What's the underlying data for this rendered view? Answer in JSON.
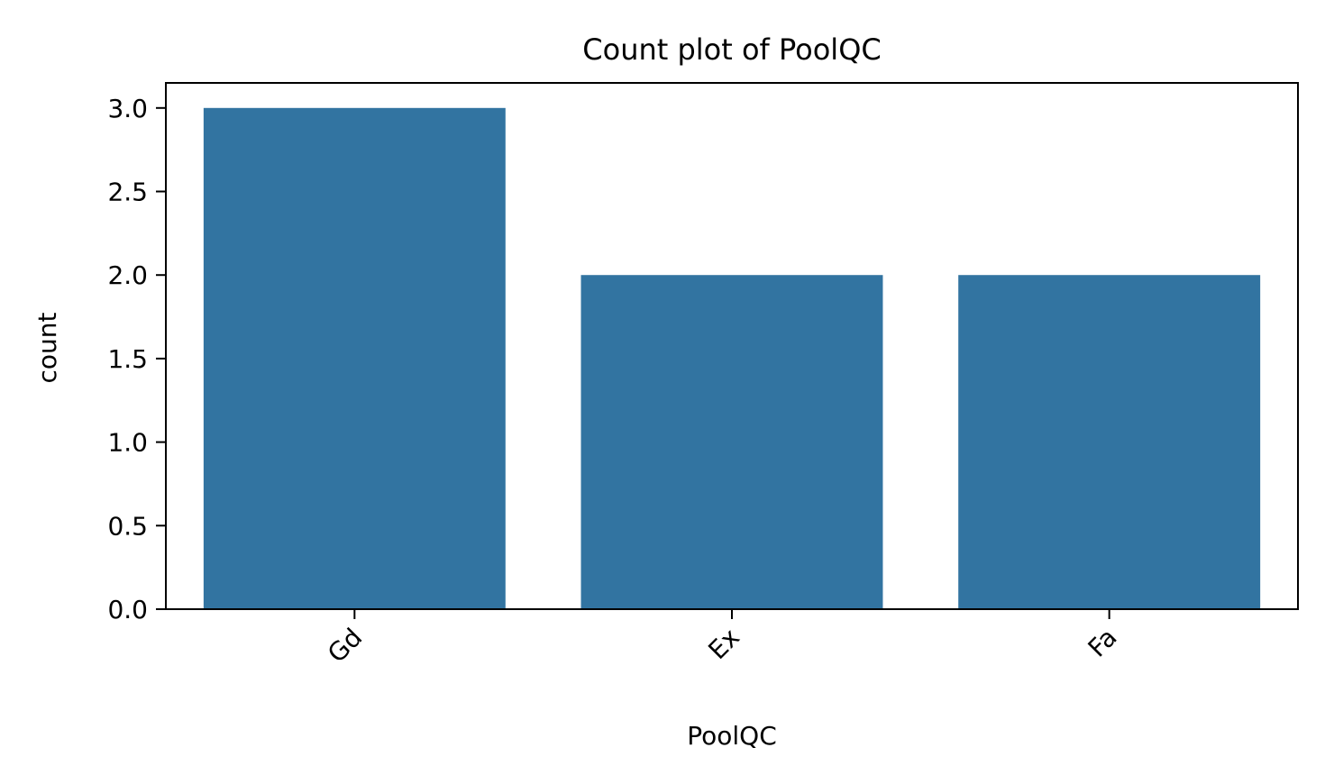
{
  "chart_data": {
    "type": "bar",
    "title": "Count plot of PoolQC",
    "xlabel": "PoolQC",
    "ylabel": "count",
    "categories": [
      "Gd",
      "Ex",
      "Fa"
    ],
    "values": [
      3,
      2,
      2
    ],
    "ylim": [
      0,
      3.15
    ],
    "yticks": [
      "0.0",
      "0.5",
      "1.0",
      "1.5",
      "2.0",
      "2.5",
      "3.0"
    ],
    "ytick_values": [
      0,
      0.5,
      1.0,
      1.5,
      2.0,
      2.5,
      3.0
    ],
    "xtick_rotation_deg": 45,
    "grid": false,
    "bar_color": "#3274a1"
  }
}
